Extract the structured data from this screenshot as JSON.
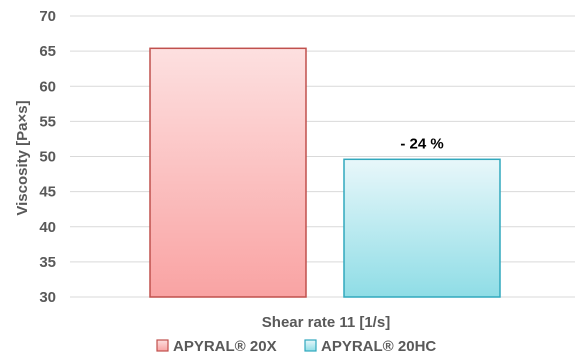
{
  "chart_data": {
    "type": "bar",
    "categories": [
      "Shear rate 11 [1/s]"
    ],
    "series": [
      {
        "name": "APYRAL® 20X",
        "values": [
          65.4
        ],
        "fill_top": "#fde0e0",
        "fill_bottom": "#f9a3a3",
        "stroke": "#c0504d"
      },
      {
        "name": "APYRAL® 20HC",
        "values": [
          49.6
        ],
        "fill_top": "#e8f7fa",
        "fill_bottom": "#8fdde6",
        "stroke": "#31a8bd"
      }
    ],
    "xlabel": "Shear rate 11 [1/s]",
    "ylabel": "Viscosity [Pa×s]",
    "ylim": [
      30,
      70
    ],
    "yticks": [
      30,
      35,
      40,
      45,
      50,
      55,
      60,
      65,
      70
    ],
    "grid": true,
    "legend_position": "bottom",
    "annotations": [
      {
        "text": "- 24 %",
        "series_index": 1
      }
    ]
  }
}
